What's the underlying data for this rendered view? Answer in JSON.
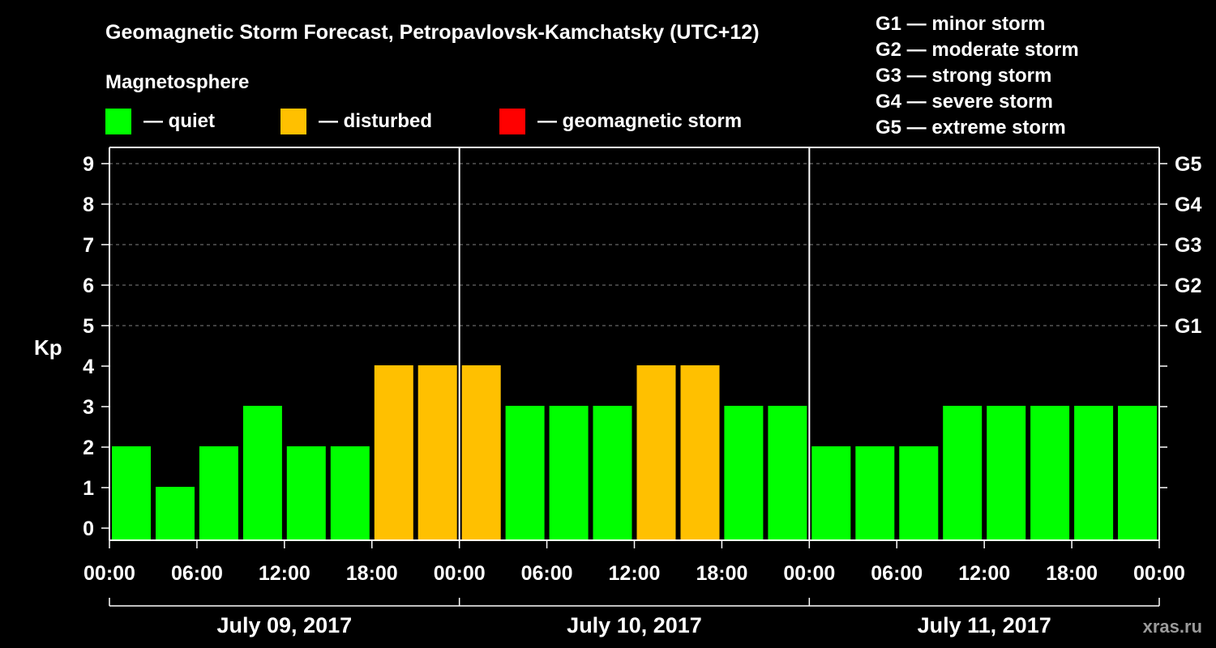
{
  "chart_data": {
    "type": "bar",
    "title": "Geomagnetic Storm Forecast, Petropavlovsk-Kamchatsky (UTC+12)",
    "legend_title": "Magnetosphere",
    "legend": [
      {
        "label": "— quiet",
        "color": "#00ff00"
      },
      {
        "label": "— disturbed",
        "color": "#ffc000"
      },
      {
        "label": "— geomagnetic storm",
        "color": "#ff0000"
      }
    ],
    "storm_scale": [
      "G1 — minor storm",
      "G2 — moderate storm",
      "G3 — strong storm",
      "G4 — severe storm",
      "G5 — extreme storm"
    ],
    "ylabel": "Kp",
    "ylim": [
      0,
      9
    ],
    "y_ticks": [
      "0",
      "1",
      "2",
      "3",
      "4",
      "5",
      "6",
      "7",
      "8",
      "9"
    ],
    "right_axis": [
      {
        "value": 5,
        "label": "G1"
      },
      {
        "value": 6,
        "label": "G2"
      },
      {
        "value": 7,
        "label": "G3"
      },
      {
        "value": 8,
        "label": "G4"
      },
      {
        "value": 9,
        "label": "G5"
      }
    ],
    "x_ticks": [
      "00:00",
      "06:00",
      "12:00",
      "18:00",
      "00:00",
      "06:00",
      "12:00",
      "18:00",
      "00:00",
      "06:00",
      "12:00",
      "18:00",
      "00:00"
    ],
    "days": [
      "July 09, 2017",
      "July 10, 2017",
      "July 11, 2017"
    ],
    "bar_hours": 3,
    "values": [
      2,
      1,
      2,
      3,
      2,
      2,
      4,
      4,
      4,
      3,
      3,
      3,
      4,
      4,
      3,
      3,
      2,
      2,
      2,
      3,
      3,
      3,
      3,
      3
    ],
    "colors": {
      "quiet": "#00ff00",
      "disturbed": "#ffc000",
      "storm": "#ff0000",
      "grid": "#808080"
    }
  },
  "watermark": "xras.ru"
}
